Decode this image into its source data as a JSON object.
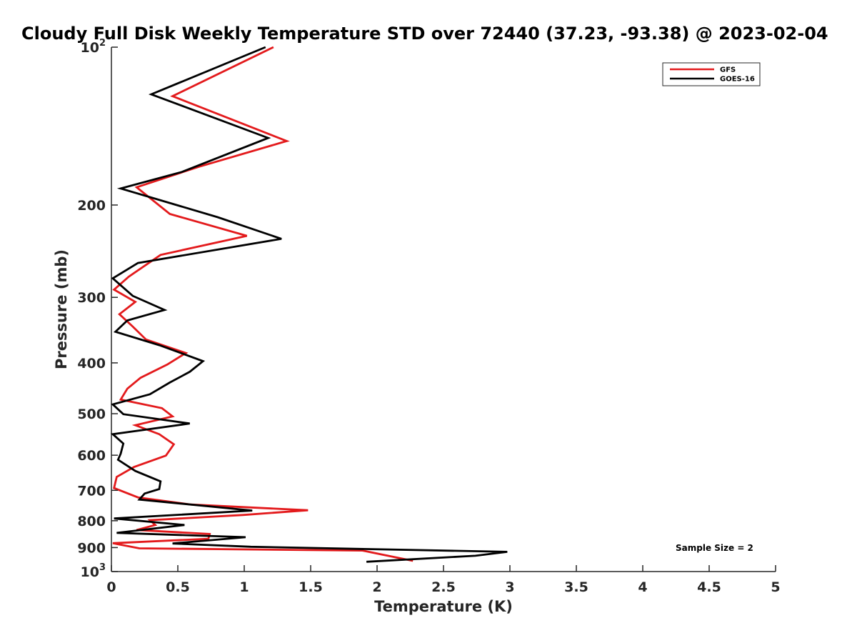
{
  "chart_data": {
    "type": "line",
    "title": "Cloudy Full Disk Weekly Temperature STD over 72440 (37.23, -93.38) @ 2023-02-04",
    "xlabel": "Temperature (K)",
    "ylabel": "Pressure (mb)",
    "xlim": [
      0,
      5
    ],
    "ylim": [
      100,
      1000
    ],
    "y_scale": "log",
    "y_reversed": true,
    "grid": false,
    "legend_position": "top-right",
    "x_ticks": [
      "0",
      "0.5",
      "1",
      "1.5",
      "2",
      "2.5",
      "3",
      "3.5",
      "4",
      "4.5",
      "5"
    ],
    "y_ticks": [
      {
        "value": 100,
        "label": "10",
        "sup": "2"
      },
      {
        "value": 200,
        "label": "200",
        "sup": ""
      },
      {
        "value": 300,
        "label": "300",
        "sup": ""
      },
      {
        "value": 400,
        "label": "400",
        "sup": ""
      },
      {
        "value": 500,
        "label": "500",
        "sup": ""
      },
      {
        "value": 600,
        "label": "600",
        "sup": ""
      },
      {
        "value": 700,
        "label": "700",
        "sup": ""
      },
      {
        "value": 800,
        "label": "800",
        "sup": ""
      },
      {
        "value": 900,
        "label": "900",
        "sup": ""
      },
      {
        "value": 1000,
        "label": "10",
        "sup": "3"
      }
    ],
    "annotation": "Sample Size = 2",
    "series": [
      {
        "name": "GFS",
        "color": "#e31a1c",
        "points": [
          [
            1.22,
            100
          ],
          [
            0.46,
            124
          ],
          [
            1.32,
            151
          ],
          [
            0.66,
            169
          ],
          [
            0.19,
            185
          ],
          [
            0.44,
            208
          ],
          [
            1.02,
            229
          ],
          [
            0.37,
            249
          ],
          [
            0.13,
            274
          ],
          [
            0.02,
            290
          ],
          [
            0.18,
            306
          ],
          [
            0.06,
            323
          ],
          [
            0.16,
            341
          ],
          [
            0.26,
            361
          ],
          [
            0.56,
            383
          ],
          [
            0.42,
            403
          ],
          [
            0.22,
            427
          ],
          [
            0.12,
            448
          ],
          [
            0.07,
            470
          ],
          [
            0.38,
            488
          ],
          [
            0.46,
            506
          ],
          [
            0.18,
            526
          ],
          [
            0.36,
            547
          ],
          [
            0.47,
            572
          ],
          [
            0.41,
            601
          ],
          [
            0.17,
            632
          ],
          [
            0.04,
            660
          ],
          [
            0.02,
            693
          ],
          [
            0.2,
            722
          ],
          [
            0.6,
            745
          ],
          [
            1.48,
            764
          ],
          [
            0.99,
            780
          ],
          [
            0.29,
            798
          ],
          [
            0.33,
            815
          ],
          [
            0.19,
            833
          ],
          [
            0.74,
            848
          ],
          [
            0.73,
            866
          ],
          [
            0.01,
            883
          ],
          [
            0.21,
            903
          ],
          [
            1.89,
            912
          ],
          [
            2.27,
            954
          ]
        ]
      },
      {
        "name": "GOES-16",
        "color": "#000000",
        "points": [
          [
            1.16,
            100
          ],
          [
            0.3,
            123
          ],
          [
            1.18,
            149
          ],
          [
            0.53,
            173
          ],
          [
            0.07,
            186
          ],
          [
            0.8,
            211
          ],
          [
            1.28,
            232
          ],
          [
            0.2,
            258
          ],
          [
            0.01,
            276
          ],
          [
            0.16,
            298
          ],
          [
            0.4,
            317
          ],
          [
            0.12,
            332
          ],
          [
            0.03,
            349
          ],
          [
            0.36,
            370
          ],
          [
            0.69,
            397
          ],
          [
            0.59,
            416
          ],
          [
            0.44,
            436
          ],
          [
            0.29,
            459
          ],
          [
            0.01,
            480
          ],
          [
            0.09,
            501
          ],
          [
            0.59,
            522
          ],
          [
            0.01,
            547
          ],
          [
            0.09,
            570
          ],
          [
            0.07,
            596
          ],
          [
            0.05,
            612
          ],
          [
            0.18,
            643
          ],
          [
            0.37,
            673
          ],
          [
            0.36,
            696
          ],
          [
            0.25,
            710
          ],
          [
            0.21,
            729
          ],
          [
            1.06,
            765
          ],
          [
            0.02,
            792
          ],
          [
            0.55,
            815
          ],
          [
            0.04,
            844
          ],
          [
            1.01,
            860
          ],
          [
            0.46,
            884
          ],
          [
            1.05,
            897
          ],
          [
            2.98,
            917
          ],
          [
            2.74,
            933
          ],
          [
            1.92,
            958
          ]
        ]
      }
    ]
  }
}
